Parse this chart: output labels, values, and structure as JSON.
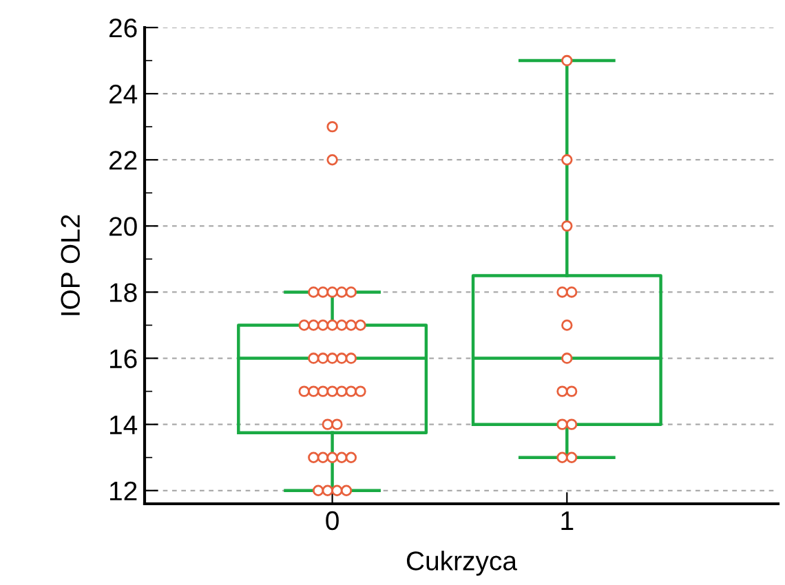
{
  "chart_data": {
    "type": "box",
    "xlabel": "Cukrzyca",
    "ylabel": "IOP OL2",
    "categories": [
      "0",
      "1"
    ],
    "boxes": [
      {
        "low": 12,
        "q1": 13.75,
        "median": 16,
        "q3": 17,
        "high": 18
      },
      {
        "low": 13,
        "q1": 14,
        "median": 16,
        "q3": 18.5,
        "high": 25
      }
    ],
    "color": "#1aaa44",
    "series": [
      {
        "type": "scatter",
        "color": "#e8603c",
        "marker": "circle",
        "x": [
          "0",
          "0",
          "0",
          "0",
          "0",
          "0",
          "0",
          "0",
          "0",
          "0",
          "0",
          "0",
          "0",
          "0",
          "0",
          "0",
          "0",
          "0",
          "0",
          "0",
          "0",
          "0",
          "0",
          "0",
          "0",
          "0",
          "0",
          "0",
          "0",
          "0",
          "0",
          "0",
          "0",
          "0",
          "0",
          "0",
          "0",
          "1",
          "1",
          "1",
          "1",
          "1",
          "1",
          "1",
          "1",
          "1",
          "1",
          "1",
          "1",
          "1"
        ],
        "values": [
          23,
          22,
          18,
          18,
          18,
          18,
          18,
          17,
          17,
          17,
          17,
          17,
          17,
          17,
          16,
          16,
          16,
          16,
          16,
          15,
          15,
          15,
          15,
          15,
          15,
          15,
          14,
          14,
          13,
          13,
          13,
          13,
          13,
          12,
          12,
          12,
          12,
          25,
          22,
          20,
          18,
          18,
          17,
          16,
          15,
          15,
          14,
          14,
          13,
          13
        ]
      }
    ],
    "ylim": [
      11.6,
      26
    ],
    "yticks": [
      12,
      {
        "value": 13,
        "label": null
      },
      14,
      {
        "value": 15,
        "label": null
      },
      16,
      {
        "value": 17,
        "label": null
      },
      18,
      {
        "value": 19,
        "label": null
      },
      20,
      {
        "value": 21,
        "label": null
      },
      22,
      {
        "value": 23,
        "label": null
      },
      24,
      {
        "value": 25,
        "label": null
      },
      26
    ],
    "grid": "y"
  }
}
